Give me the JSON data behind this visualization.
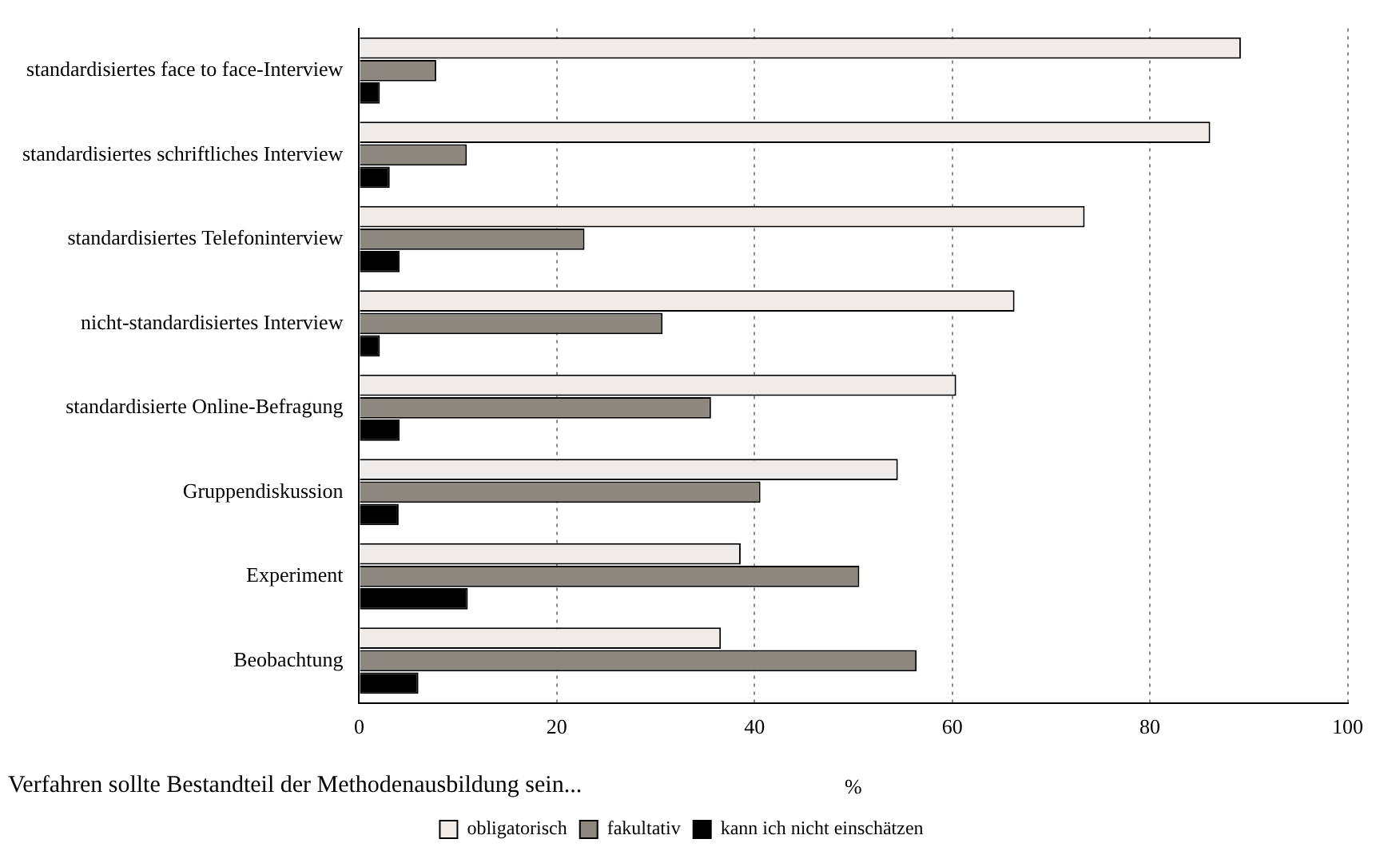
{
  "chart_data": {
    "type": "bar",
    "orientation": "horizontal",
    "categories": [
      "standardisiertes face to face-Interview",
      "standardisiertes schriftliches Interview",
      "standardisiertes Telefoninterview",
      "nicht-standardisiertes Interview",
      "standardisierte Online-Befragung",
      "Gruppendiskussion",
      "Experiment",
      "Beobachtung"
    ],
    "series": [
      {
        "name": "obligatorisch",
        "color": "#efebe8",
        "values": [
          89.2,
          86.1,
          73.4,
          66.3,
          60.4,
          54.5,
          38.6,
          36.6
        ]
      },
      {
        "name": "fakultativ",
        "color": "#8c877f",
        "values": [
          7.8,
          10.9,
          22.8,
          30.7,
          35.6,
          40.6,
          50.6,
          56.4
        ]
      },
      {
        "name": "kann ich nicht einschätzen",
        "color": "#000000",
        "values": [
          2.1,
          3.1,
          4.1,
          2.1,
          4.1,
          4.0,
          11.0,
          6.0
        ]
      }
    ],
    "xlim": [
      0,
      100
    ],
    "xticks": [
      0,
      20,
      40,
      60,
      80,
      100
    ],
    "xlabel": "%",
    "annotations": [
      "Verfahren sollte Bestandteil der Methodenausbildung sein..."
    ],
    "grid": "x",
    "legend": "bottom"
  }
}
